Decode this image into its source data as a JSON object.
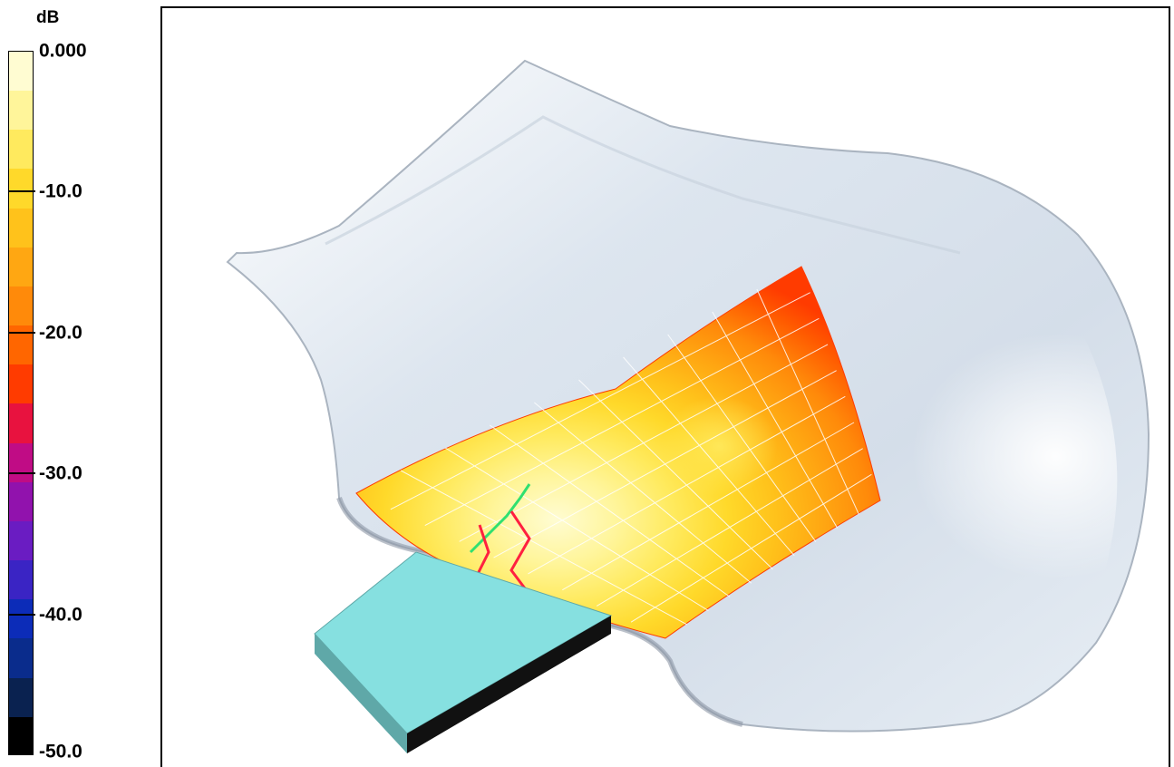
{
  "legend": {
    "unit": "dB",
    "ticks": [
      "0.000",
      "-10.0",
      "-20.0",
      "-30.0",
      "-40.0",
      "-50.0"
    ],
    "colors": [
      "#fffcd2",
      "#fff59a",
      "#ffea5e",
      "#ffd92a",
      "#ffc21b",
      "#ffa712",
      "#ff8a0a",
      "#ff6600",
      "#ff3b00",
      "#e8123f",
      "#c00c85",
      "#9112ad",
      "#6a1cc2",
      "#3a24c4",
      "#0c2cb8",
      "#0a2c8c",
      "#0a2250",
      "#000000"
    ]
  },
  "colors": {
    "body": "#dfe7ef",
    "body_edge": "#9aa4b0",
    "block_top": "#86e0e0",
    "block_side": "#5fa8a8",
    "block_bottom": "#111111",
    "grid": "#ffffff",
    "probe_red": "#ff2040",
    "probe_green": "#30e070"
  }
}
